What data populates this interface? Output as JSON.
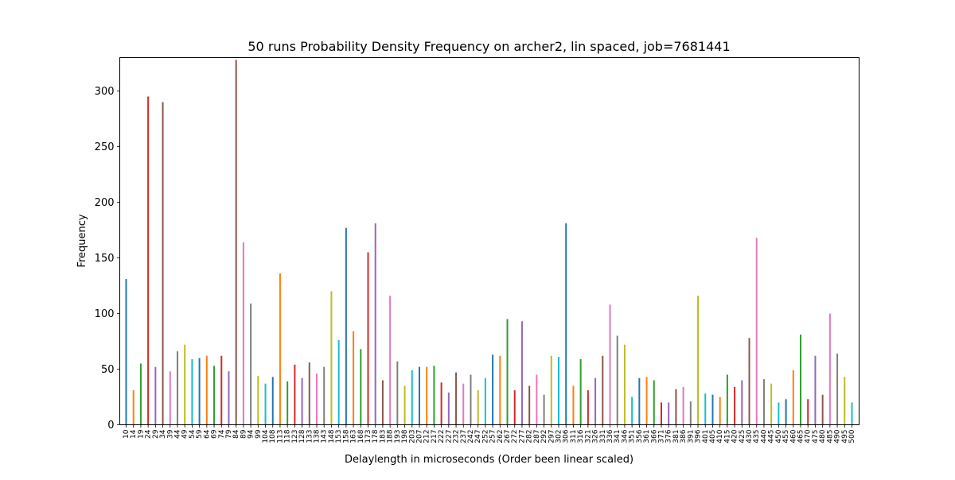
{
  "chart_data": {
    "type": "bar",
    "title": "50 runs Probability Density Frequency on archer2, lin spaced, job=7681441",
    "xlabel": "Delaylength in microseconds (Order been linear scaled)",
    "ylabel": "Frequency",
    "ylim": [
      0,
      330
    ],
    "yticks": [
      0,
      50,
      100,
      150,
      200,
      250,
      300
    ],
    "grid": false,
    "legend": "none",
    "colors": [
      "#1f77b4",
      "#ff7f0e",
      "#2ca02c",
      "#d62728",
      "#9467bd",
      "#8c564b",
      "#e377c2",
      "#7f7f7f",
      "#bcbd22",
      "#17becf"
    ],
    "categories": [
      "10",
      "14",
      "19",
      "24",
      "29",
      "34",
      "39",
      "44",
      "49",
      "54",
      "59",
      "64",
      "69",
      "74",
      "79",
      "84",
      "89",
      "94",
      "99",
      "104",
      "108",
      "113",
      "118",
      "123",
      "128",
      "133",
      "138",
      "143",
      "148",
      "153",
      "158",
      "163",
      "168",
      "173",
      "178",
      "183",
      "188",
      "193",
      "198",
      "203",
      "207",
      "212",
      "217",
      "222",
      "227",
      "232",
      "237",
      "242",
      "247",
      "252",
      "257",
      "262",
      "267",
      "272",
      "277",
      "282",
      "287",
      "292",
      "297",
      "302",
      "306",
      "311",
      "316",
      "321",
      "326",
      "331",
      "336",
      "341",
      "346",
      "351",
      "356",
      "361",
      "366",
      "371",
      "376",
      "381",
      "386",
      "391",
      "396",
      "401",
      "405",
      "410",
      "415",
      "420",
      "425",
      "430",
      "435",
      "440",
      "445",
      "450",
      "455",
      "460",
      "465",
      "470",
      "475",
      "480",
      "485",
      "490",
      "495",
      "500"
    ],
    "values": [
      131,
      31,
      55,
      295,
      52,
      290,
      48,
      66,
      72,
      59,
      60,
      62,
      53,
      62,
      48,
      328,
      164,
      109,
      44,
      37,
      43,
      136,
      39,
      54,
      42,
      56,
      46,
      52,
      120,
      76,
      177,
      84,
      68,
      155,
      181,
      40,
      116,
      57,
      35,
      49,
      52,
      52,
      53,
      38,
      29,
      47,
      37,
      45,
      31,
      42,
      63,
      62,
      95,
      31,
      93,
      35,
      45,
      27,
      62,
      61,
      181,
      35,
      59,
      31,
      42,
      62,
      108,
      80,
      72,
      25,
      42,
      43,
      40,
      20,
      20,
      32,
      34,
      21,
      116,
      28,
      27,
      25,
      45,
      34,
      40,
      78,
      168,
      41,
      37,
      20,
      23,
      49,
      81,
      23,
      62,
      27,
      100,
      64,
      43,
      20
    ]
  }
}
